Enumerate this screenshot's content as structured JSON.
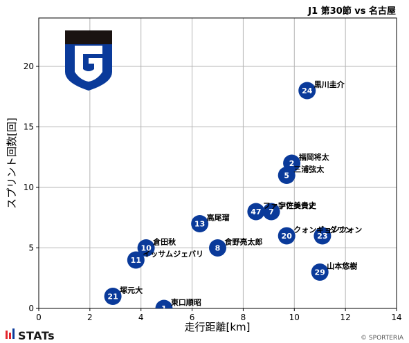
{
  "title": "J1 第30節 vs 名古屋",
  "credit": "© SPORTERIA",
  "brand": "STATs",
  "colors": {
    "marker": "#0a3a9a",
    "marker_text": "#ffffff",
    "logo_dark": "#1a1311",
    "logo_blue": "#0a3a9a",
    "grid": "#b4b4b4"
  },
  "chart_data": {
    "type": "scatter",
    "xlabel": "走行距離[km]",
    "ylabel": "スプリント回数[回]",
    "xlim": [
      0,
      14
    ],
    "ylim": [
      0,
      24
    ],
    "xticks": [
      0,
      2,
      4,
      6,
      8,
      10,
      12,
      14
    ],
    "yticks": [
      0,
      5,
      10,
      15,
      20
    ],
    "grid": true,
    "points": [
      {
        "number": "24",
        "name": "黒川圭介",
        "x": 10.5,
        "y": 18
      },
      {
        "number": "2",
        "name": "福岡将太",
        "x": 9.9,
        "y": 12
      },
      {
        "number": "5",
        "name": "三浦弦太",
        "x": 9.7,
        "y": 11
      },
      {
        "number": "47",
        "name": "ファンアラーノ",
        "x": 8.5,
        "y": 8
      },
      {
        "number": "7",
        "name": "宇佐美貴史",
        "x": 9.1,
        "y": 8
      },
      {
        "number": "13",
        "name": "高尾瑠",
        "x": 6.3,
        "y": 7
      },
      {
        "number": "20",
        "name": "クォンギョンウォン",
        "x": 9.7,
        "y": 6
      },
      {
        "number": "23",
        "name": "ダワン",
        "x": 11.1,
        "y": 6
      },
      {
        "number": "10",
        "name": "倉田秋",
        "x": 4.2,
        "y": 5
      },
      {
        "number": "8",
        "name": "食野亮太郎",
        "x": 7.0,
        "y": 5
      },
      {
        "number": "11",
        "name": "イッサムジェバリ",
        "x": 3.8,
        "y": 4
      },
      {
        "number": "29",
        "name": "山本悠樹",
        "x": 11.0,
        "y": 3
      },
      {
        "number": "21",
        "name": "塚元大",
        "x": 2.9,
        "y": 1
      },
      {
        "number": "1",
        "name": "東口順昭",
        "x": 4.9,
        "y": 0
      }
    ]
  }
}
